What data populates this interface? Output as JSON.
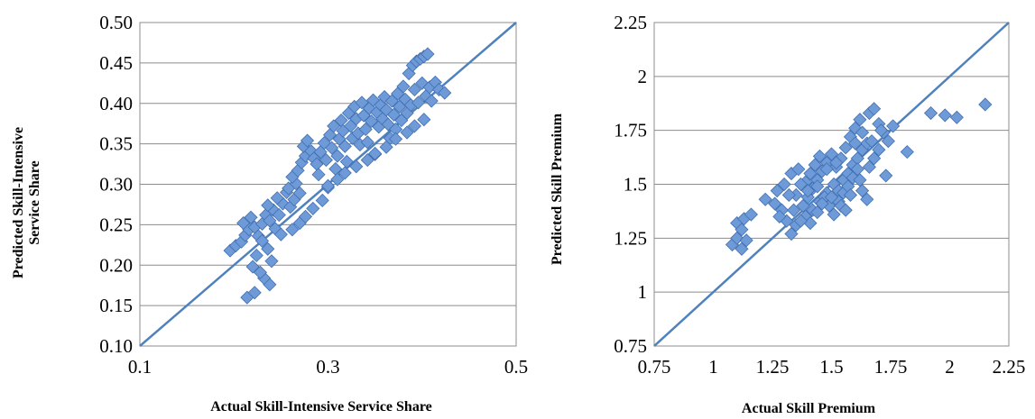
{
  "colors": {
    "marker_fill": "#6f9ad8",
    "marker_stroke": "#3f6fb2",
    "diagonal": "#4f81bd",
    "gridline": "#8c8c8c"
  },
  "chart_data": [
    {
      "type": "scatter",
      "title": "",
      "xlabel": "Actual Skill-Intensive Service Share",
      "ylabel_lines": [
        "Predicted Skill-Intensive",
        "Service Share"
      ],
      "xlim": [
        0.1,
        0.5
      ],
      "ylim": [
        0.1,
        0.5
      ],
      "x_ticks": [
        "0.1",
        "0.3",
        "0.5"
      ],
      "y_ticks": [
        "0.10",
        "0.15",
        "0.20",
        "0.25",
        "0.30",
        "0.35",
        "0.40",
        "0.45",
        "0.50"
      ],
      "grid": "horizontal",
      "diagonal": [
        0.1,
        0.5
      ],
      "points": [
        [
          0.196,
          0.218
        ],
        [
          0.202,
          0.224
        ],
        [
          0.208,
          0.229
        ],
        [
          0.212,
          0.237
        ],
        [
          0.216,
          0.244
        ],
        [
          0.21,
          0.252
        ],
        [
          0.218,
          0.259
        ],
        [
          0.222,
          0.247
        ],
        [
          0.226,
          0.236
        ],
        [
          0.23,
          0.251
        ],
        [
          0.234,
          0.262
        ],
        [
          0.238,
          0.255
        ],
        [
          0.242,
          0.268
        ],
        [
          0.236,
          0.274
        ],
        [
          0.244,
          0.245
        ],
        [
          0.248,
          0.262
        ],
        [
          0.252,
          0.276
        ],
        [
          0.246,
          0.283
        ],
        [
          0.256,
          0.29
        ],
        [
          0.26,
          0.272
        ],
        [
          0.264,
          0.281
        ],
        [
          0.258,
          0.295
        ],
        [
          0.266,
          0.301
        ],
        [
          0.262,
          0.309
        ],
        [
          0.268,
          0.317
        ],
        [
          0.27,
          0.289
        ],
        [
          0.272,
          0.327
        ],
        [
          0.276,
          0.335
        ],
        [
          0.274,
          0.347
        ],
        [
          0.278,
          0.354
        ],
        [
          0.282,
          0.341
        ],
        [
          0.285,
          0.332
        ],
        [
          0.288,
          0.325
        ],
        [
          0.29,
          0.312
        ],
        [
          0.292,
          0.34
        ],
        [
          0.296,
          0.351
        ],
        [
          0.298,
          0.33
        ],
        [
          0.3,
          0.296
        ],
        [
          0.302,
          0.361
        ],
        [
          0.304,
          0.345
        ],
        [
          0.306,
          0.372
        ],
        [
          0.308,
          0.319
        ],
        [
          0.31,
          0.335
        ],
        [
          0.312,
          0.356
        ],
        [
          0.314,
          0.379
        ],
        [
          0.316,
          0.366
        ],
        [
          0.318,
          0.347
        ],
        [
          0.32,
          0.328
        ],
        [
          0.322,
          0.388
        ],
        [
          0.324,
          0.372
        ],
        [
          0.326,
          0.357
        ],
        [
          0.328,
          0.396
        ],
        [
          0.33,
          0.381
        ],
        [
          0.332,
          0.363
        ],
        [
          0.334,
          0.349
        ],
        [
          0.336,
          0.401
        ],
        [
          0.338,
          0.385
        ],
        [
          0.34,
          0.368
        ],
        [
          0.342,
          0.352
        ],
        [
          0.344,
          0.394
        ],
        [
          0.346,
          0.378
        ],
        [
          0.348,
          0.404
        ],
        [
          0.35,
          0.337
        ],
        [
          0.352,
          0.389
        ],
        [
          0.354,
          0.371
        ],
        [
          0.356,
          0.398
        ],
        [
          0.358,
          0.381
        ],
        [
          0.36,
          0.408
        ],
        [
          0.362,
          0.392
        ],
        [
          0.364,
          0.374
        ],
        [
          0.366,
          0.357
        ],
        [
          0.368,
          0.403
        ],
        [
          0.37,
          0.386
        ],
        [
          0.372,
          0.368
        ],
        [
          0.374,
          0.412
        ],
        [
          0.376,
          0.396
        ],
        [
          0.378,
          0.379
        ],
        [
          0.38,
          0.421
        ],
        [
          0.382,
          0.405
        ],
        [
          0.384,
          0.388
        ],
        [
          0.386,
          0.437
        ],
        [
          0.388,
          0.398
        ],
        [
          0.39,
          0.447
        ],
        [
          0.392,
          0.417
        ],
        [
          0.394,
          0.452
        ],
        [
          0.396,
          0.401
        ],
        [
          0.398,
          0.455
        ],
        [
          0.4,
          0.425
        ],
        [
          0.402,
          0.458
        ],
        [
          0.404,
          0.409
        ],
        [
          0.406,
          0.461
        ],
        [
          0.408,
          0.42
        ],
        [
          0.41,
          0.403
        ],
        [
          0.414,
          0.426
        ],
        [
          0.418,
          0.417
        ],
        [
          0.424,
          0.413
        ],
        [
          0.214,
          0.16
        ],
        [
          0.222,
          0.166
        ],
        [
          0.238,
          0.176
        ],
        [
          0.232,
          0.184
        ],
        [
          0.228,
          0.191
        ],
        [
          0.22,
          0.198
        ],
        [
          0.24,
          0.205
        ],
        [
          0.224,
          0.212
        ],
        [
          0.236,
          0.22
        ],
        [
          0.23,
          0.23
        ],
        [
          0.25,
          0.238
        ],
        [
          0.262,
          0.244
        ],
        [
          0.27,
          0.252
        ],
        [
          0.276,
          0.26
        ],
        [
          0.284,
          0.27
        ],
        [
          0.294,
          0.28
        ],
        [
          0.3,
          0.298
        ],
        [
          0.31,
          0.306
        ],
        [
          0.318,
          0.314
        ],
        [
          0.33,
          0.322
        ],
        [
          0.342,
          0.33
        ],
        [
          0.35,
          0.338
        ],
        [
          0.362,
          0.346
        ],
        [
          0.372,
          0.356
        ],
        [
          0.384,
          0.364
        ],
        [
          0.392,
          0.372
        ],
        [
          0.402,
          0.38
        ]
      ]
    },
    {
      "type": "scatter",
      "title": "",
      "xlabel": "Actual Skill Premium",
      "ylabel_lines": [
        "Predicted Skill Premium"
      ],
      "xlim": [
        0.75,
        2.25
      ],
      "ylim": [
        0.75,
        2.25
      ],
      "x_ticks": [
        "0.75",
        "1",
        "1.25",
        "1.5",
        "1.75",
        "2",
        "2.25"
      ],
      "y_ticks": [
        "0.75",
        "1",
        "1.25",
        "1.5",
        "1.75",
        "2",
        "2.25"
      ],
      "grid": "horizontal",
      "diagonal": [
        0.75,
        2.25
      ],
      "points": [
        [
          1.08,
          1.22
        ],
        [
          1.1,
          1.25
        ],
        [
          1.12,
          1.2
        ],
        [
          1.14,
          1.24
        ],
        [
          1.1,
          1.32
        ],
        [
          1.13,
          1.34
        ],
        [
          1.16,
          1.36
        ],
        [
          1.12,
          1.29
        ],
        [
          1.22,
          1.43
        ],
        [
          1.27,
          1.47
        ],
        [
          1.3,
          1.5
        ],
        [
          1.33,
          1.55
        ],
        [
          1.36,
          1.57
        ],
        [
          1.29,
          1.38
        ],
        [
          1.31,
          1.33
        ],
        [
          1.33,
          1.27
        ],
        [
          1.35,
          1.31
        ],
        [
          1.38,
          1.4
        ],
        [
          1.4,
          1.44
        ],
        [
          1.42,
          1.48
        ],
        [
          1.44,
          1.52
        ],
        [
          1.46,
          1.56
        ],
        [
          1.48,
          1.6
        ],
        [
          1.5,
          1.64
        ],
        [
          1.52,
          1.58
        ],
        [
          1.54,
          1.62
        ],
        [
          1.56,
          1.67
        ],
        [
          1.58,
          1.72
        ],
        [
          1.6,
          1.76
        ],
        [
          1.62,
          1.8
        ],
        [
          1.66,
          1.83
        ],
        [
          1.68,
          1.85
        ],
        [
          1.7,
          1.78
        ],
        [
          1.72,
          1.74
        ],
        [
          1.74,
          1.7
        ],
        [
          1.76,
          1.77
        ],
        [
          1.42,
          1.38
        ],
        [
          1.45,
          1.42
        ],
        [
          1.48,
          1.46
        ],
        [
          1.51,
          1.5
        ],
        [
          1.53,
          1.47
        ],
        [
          1.55,
          1.52
        ],
        [
          1.57,
          1.55
        ],
        [
          1.59,
          1.59
        ],
        [
          1.61,
          1.62
        ],
        [
          1.63,
          1.66
        ],
        [
          1.65,
          1.69
        ],
        [
          1.39,
          1.51
        ],
        [
          1.41,
          1.55
        ],
        [
          1.43,
          1.59
        ],
        [
          1.45,
          1.63
        ],
        [
          1.47,
          1.44
        ],
        [
          1.49,
          1.4
        ],
        [
          1.51,
          1.36
        ],
        [
          1.53,
          1.42
        ],
        [
          1.55,
          1.46
        ],
        [
          1.57,
          1.49
        ],
        [
          1.59,
          1.53
        ],
        [
          1.61,
          1.57
        ],
        [
          1.63,
          1.47
        ],
        [
          1.65,
          1.43
        ],
        [
          1.35,
          1.45
        ],
        [
          1.37,
          1.5
        ],
        [
          1.39,
          1.35
        ],
        [
          1.41,
          1.32
        ],
        [
          1.44,
          1.37
        ],
        [
          1.46,
          1.41
        ],
        [
          1.5,
          1.44
        ],
        [
          1.54,
          1.4
        ],
        [
          1.58,
          1.45
        ],
        [
          1.62,
          1.52
        ],
        [
          1.66,
          1.58
        ],
        [
          1.68,
          1.62
        ],
        [
          1.7,
          1.66
        ],
        [
          1.73,
          1.54
        ],
        [
          1.82,
          1.65
        ],
        [
          1.92,
          1.83
        ],
        [
          1.98,
          1.82
        ],
        [
          2.03,
          1.81
        ],
        [
          2.15,
          1.87
        ],
        [
          1.56,
          1.38
        ],
        [
          1.52,
          1.6
        ],
        [
          1.48,
          1.57
        ],
        [
          1.44,
          1.49
        ],
        [
          1.4,
          1.47
        ],
        [
          1.34,
          1.38
        ],
        [
          1.32,
          1.45
        ],
        [
          1.28,
          1.35
        ],
        [
          1.26,
          1.41
        ],
        [
          1.37,
          1.33
        ],
        [
          1.6,
          1.69
        ],
        [
          1.63,
          1.74
        ],
        [
          1.67,
          1.7
        ],
        [
          1.71,
          1.75
        ]
      ]
    }
  ]
}
